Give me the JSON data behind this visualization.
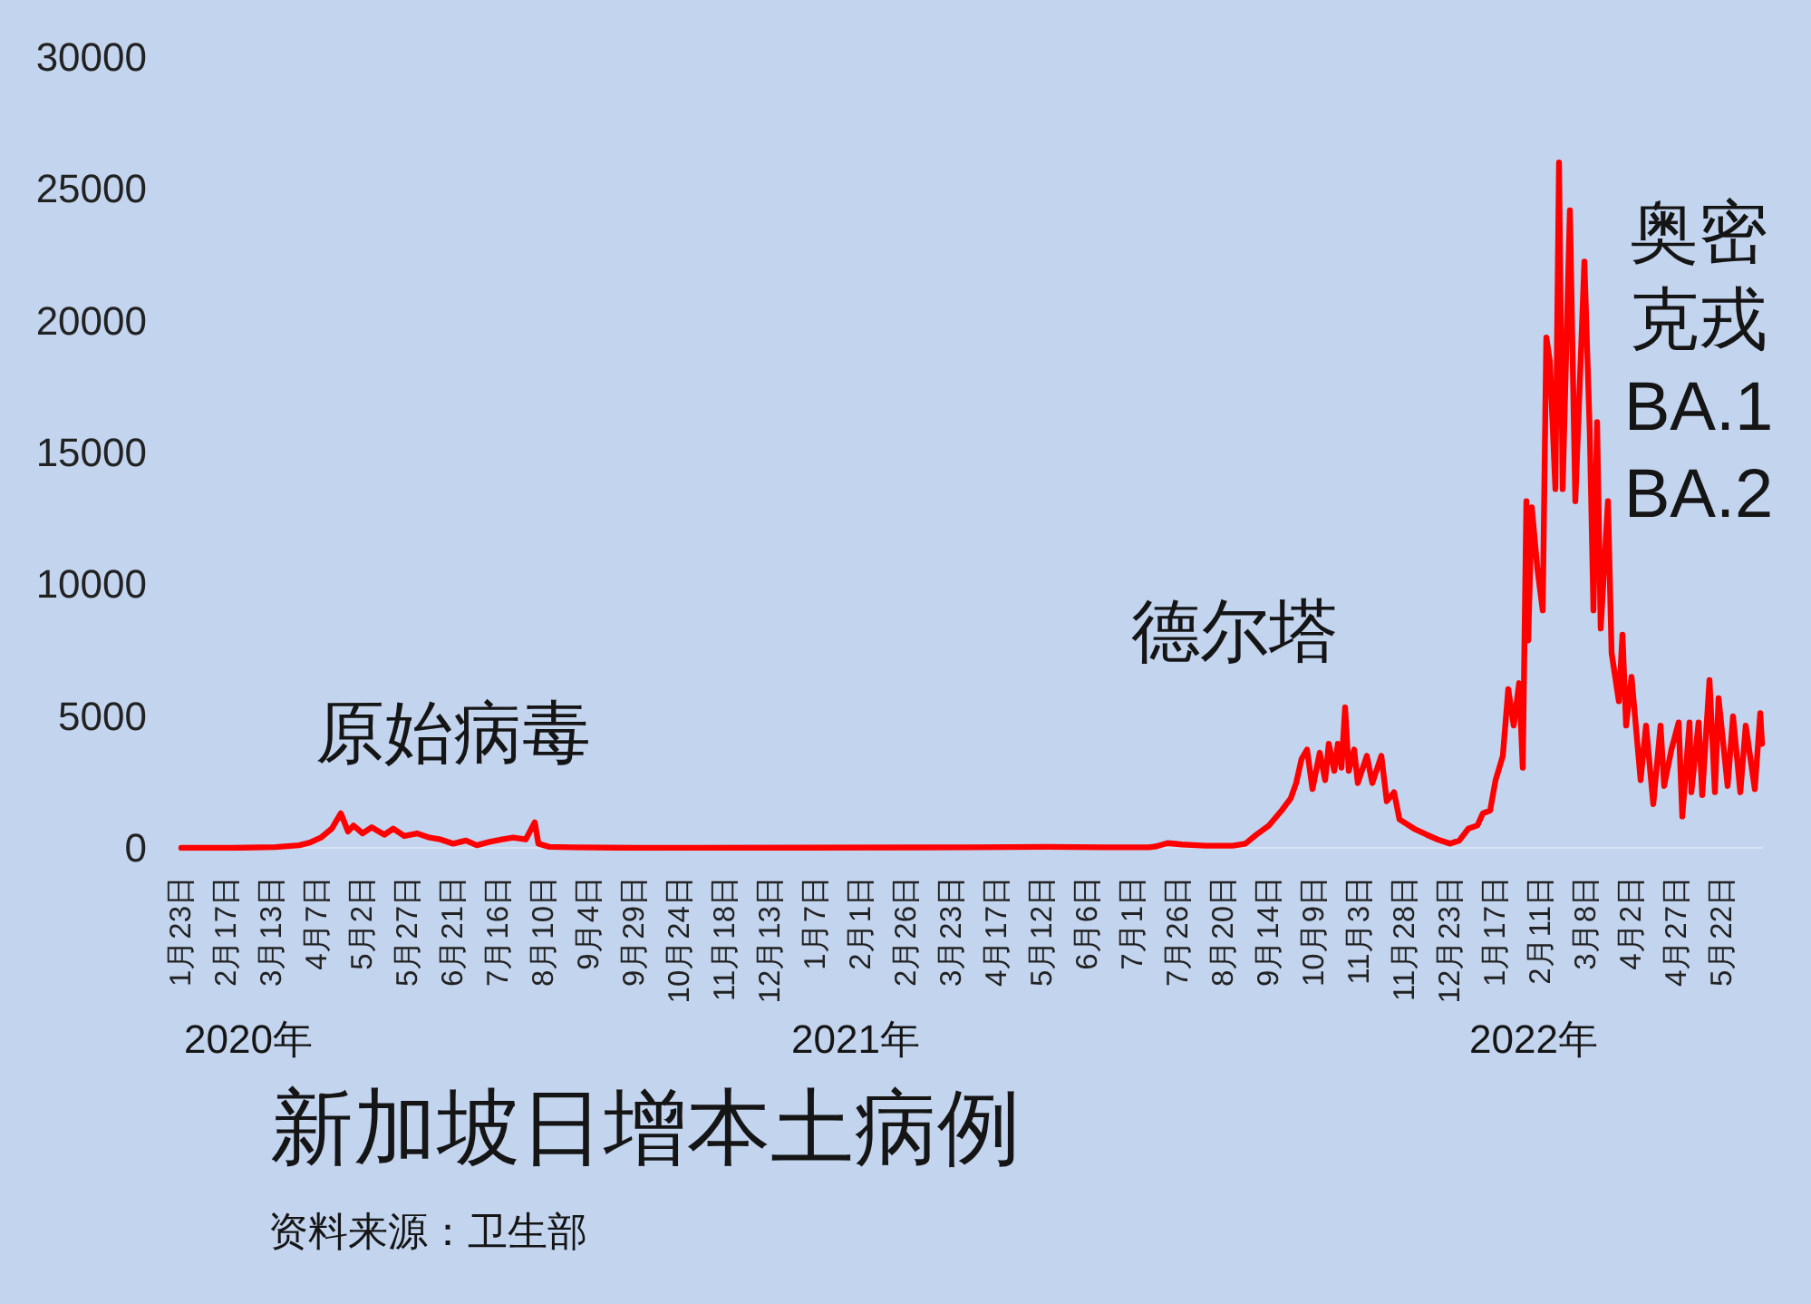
{
  "chart_data": {
    "type": "line",
    "title": "新加坡日增本土病例",
    "annotations": [
      "原始病毒",
      "德尔塔",
      "奥密克戎 BA.1 BA.2",
      "2020年",
      "2021年",
      "2022年",
      "资料来源：卫生部"
    ],
    "x": [
      "2020-01-23",
      "2020-02-20",
      "2020-03-15",
      "2020-03-28",
      "2020-04-03",
      "2020-04-09",
      "2020-04-15",
      "2020-04-20",
      "2020-04-24",
      "2020-04-27",
      "2020-05-02",
      "2020-05-07",
      "2020-05-14",
      "2020-05-19",
      "2020-05-25",
      "2020-06-01",
      "2020-06-08",
      "2020-06-14",
      "2020-06-21",
      "2020-06-28",
      "2020-07-04",
      "2020-07-11",
      "2020-07-18",
      "2020-07-24",
      "2020-07-31",
      "2020-08-05",
      "2020-08-07",
      "2020-08-13",
      "2020-08-25",
      "2020-10-01",
      "2021-01-01",
      "2021-04-01",
      "2021-05-15",
      "2021-06-15",
      "2021-07-10",
      "2021-07-14",
      "2021-07-20",
      "2021-07-28",
      "2021-08-10",
      "2021-08-25",
      "2021-09-01",
      "2021-09-07",
      "2021-09-14",
      "2021-09-21",
      "2021-09-26",
      "2021-09-29",
      "2021-10-02",
      "2021-10-05",
      "2021-10-08",
      "2021-10-12",
      "2021-10-15",
      "2021-10-17",
      "2021-10-20",
      "2021-10-22",
      "2021-10-24",
      "2021-10-26",
      "2021-10-28",
      "2021-10-31",
      "2021-11-02",
      "2021-11-07",
      "2021-11-10",
      "2021-11-15",
      "2021-11-18",
      "2021-11-22",
      "2021-11-25",
      "2021-12-03",
      "2021-12-10",
      "2021-12-16",
      "2021-12-23",
      "2021-12-28",
      "2022-01-02",
      "2022-01-07",
      "2022-01-10",
      "2022-01-14",
      "2022-01-17",
      "2022-01-21",
      "2022-01-24",
      "2022-01-27",
      "2022-01-30",
      "2022-02-01",
      "2022-02-03",
      "2022-02-04",
      "2022-02-06",
      "2022-02-09",
      "2022-02-12",
      "2022-02-14",
      "2022-02-16",
      "2022-02-19",
      "2022-02-21",
      "2022-02-23",
      "2022-02-27",
      "2022-03-02",
      "2022-03-07",
      "2022-03-10",
      "2022-03-12",
      "2022-03-14",
      "2022-03-16",
      "2022-03-20",
      "2022-03-22",
      "2022-03-26",
      "2022-03-28",
      "2022-03-30",
      "2022-04-02",
      "2022-04-07",
      "2022-04-10",
      "2022-04-14",
      "2022-04-18",
      "2022-04-20",
      "2022-04-24",
      "2022-04-28",
      "2022-04-30",
      "2022-05-04",
      "2022-05-05",
      "2022-05-09",
      "2022-05-11",
      "2022-05-15",
      "2022-05-18",
      "2022-05-20",
      "2022-05-25",
      "2022-05-28",
      "2022-06-01",
      "2022-06-04",
      "2022-06-09",
      "2022-06-12",
      "2022-06-13"
    ],
    "values": [
      0,
      0,
      30,
      100,
      200,
      390,
      730,
      1310,
      620,
      850,
      550,
      780,
      500,
      730,
      450,
      550,
      390,
      320,
      160,
      280,
      100,
      230,
      320,
      390,
      320,
      970,
      160,
      40,
      20,
      0,
      10,
      20,
      40,
      20,
      20,
      60,
      180,
      130,
      80,
      80,
      160,
      500,
      850,
      1420,
      1880,
      2460,
      3380,
      3730,
      2230,
      3610,
      2570,
      3950,
      2920,
      3950,
      3040,
      5330,
      2920,
      3730,
      2460,
      3490,
      2460,
      3490,
      1770,
      2110,
      1080,
      730,
      500,
      320,
      160,
      280,
      730,
      850,
      1310,
      1420,
      2570,
      3490,
      6020,
      4640,
      6250,
      3040,
      13150,
      7870,
      12920,
      10630,
      9010,
      19360,
      18440,
      13610,
      26000,
      13610,
      24190,
      13150,
      22240,
      15680,
      9010,
      16150,
      8320,
      13150,
      7400,
      5560,
      8090,
      4640,
      6490,
      2570,
      4640,
      1660,
      4640,
      2350,
      3730,
      4760,
      1190,
      4760,
      2110,
      4760,
      2000,
      6370,
      2110,
      5680,
      2350,
      4990,
      2110,
      4640,
      2230,
      5110,
      3950
    ],
    "color": "#ff0000",
    "marker": "none",
    "line_style": "solid",
    "grid": false,
    "xlim": [
      "2020-01-23",
      "2022-06-13"
    ],
    "xticks": [
      {
        "value": "2020-01-23",
        "label": "1月23日"
      },
      {
        "value": "2020-02-17",
        "label": "2月17日"
      },
      {
        "value": "2020-03-13",
        "label": "3月13日"
      },
      {
        "value": "2020-04-07",
        "label": "4月7日"
      },
      {
        "value": "2020-05-02",
        "label": "5月2日"
      },
      {
        "value": "2020-05-27",
        "label": "5月27日"
      },
      {
        "value": "2020-06-21",
        "label": "6月21日"
      },
      {
        "value": "2020-07-16",
        "label": "7月16日"
      },
      {
        "value": "2020-08-10",
        "label": "8月10日"
      },
      {
        "value": "2020-09-04",
        "label": "9月4日"
      },
      {
        "value": "2020-09-29",
        "label": "9月29日"
      },
      {
        "value": "2020-10-24",
        "label": "10月24日"
      },
      {
        "value": "2020-11-18",
        "label": "11月18日"
      },
      {
        "value": "2020-12-13",
        "label": "12月13日"
      },
      {
        "value": "2021-01-07",
        "label": "1月7日"
      },
      {
        "value": "2021-02-01",
        "label": "2月1日"
      },
      {
        "value": "2021-02-26",
        "label": "2月26日"
      },
      {
        "value": "2021-03-23",
        "label": "3月23日"
      },
      {
        "value": "2021-04-17",
        "label": "4月17日"
      },
      {
        "value": "2021-05-12",
        "label": "5月12日"
      },
      {
        "value": "2021-06-06",
        "label": "6月6日"
      },
      {
        "value": "2021-07-01",
        "label": "7月1日"
      },
      {
        "value": "2021-07-26",
        "label": "7月26日"
      },
      {
        "value": "2021-08-20",
        "label": "8月20日"
      },
      {
        "value": "2021-09-14",
        "label": "9月14日"
      },
      {
        "value": "2021-10-09",
        "label": "10月9日"
      },
      {
        "value": "2021-11-03",
        "label": "11月3日"
      },
      {
        "value": "2021-11-28",
        "label": "11月28日"
      },
      {
        "value": "2021-12-23",
        "label": "12月23日"
      },
      {
        "value": "2022-01-17",
        "label": "1月17日"
      },
      {
        "value": "2022-02-11",
        "label": "2月11日"
      },
      {
        "value": "2022-03-08",
        "label": "3月8日"
      },
      {
        "value": "2022-04-02",
        "label": "4月2日"
      },
      {
        "value": "2022-04-27",
        "label": "4月27日"
      },
      {
        "value": "2022-05-22",
        "label": "5月22日"
      }
    ],
    "ylim": [
      0,
      30000
    ],
    "yticks": [
      0,
      5000,
      10000,
      15000,
      20000,
      25000,
      30000
    ]
  }
}
